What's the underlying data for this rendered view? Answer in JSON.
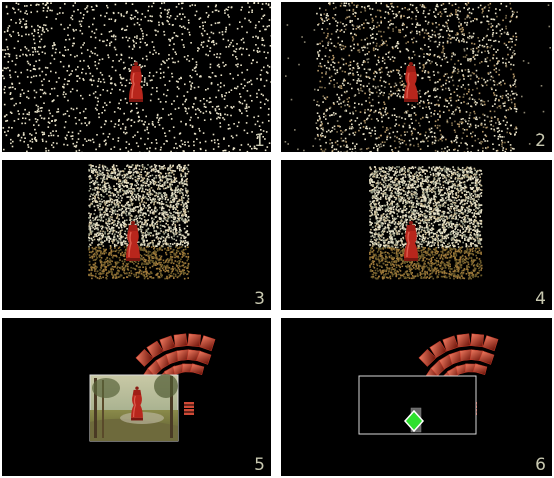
{
  "panels": [
    {
      "label": "1",
      "stage": "particles-scattered"
    },
    {
      "label": "2",
      "stage": "particles-gathering"
    },
    {
      "label": "3",
      "stage": "particles-forming-image"
    },
    {
      "label": "4",
      "stage": "image-dense"
    },
    {
      "label": "5",
      "stage": "painting-with-fan-menu"
    },
    {
      "label": "6",
      "stage": "wireframe-with-handle"
    }
  ],
  "colors": {
    "background": "#000000",
    "particle": "#e8e2c8",
    "pepper_mill": "#b8261c",
    "fan_menu": "#c43a2a",
    "handle": "#2ee02e",
    "frame": "#d8d8d8",
    "label": "#c8c8b0"
  },
  "icons": [
    "pepper-mill-icon",
    "fan-menu-icon",
    "painting-thumbnail",
    "diamond-handle-icon"
  ]
}
